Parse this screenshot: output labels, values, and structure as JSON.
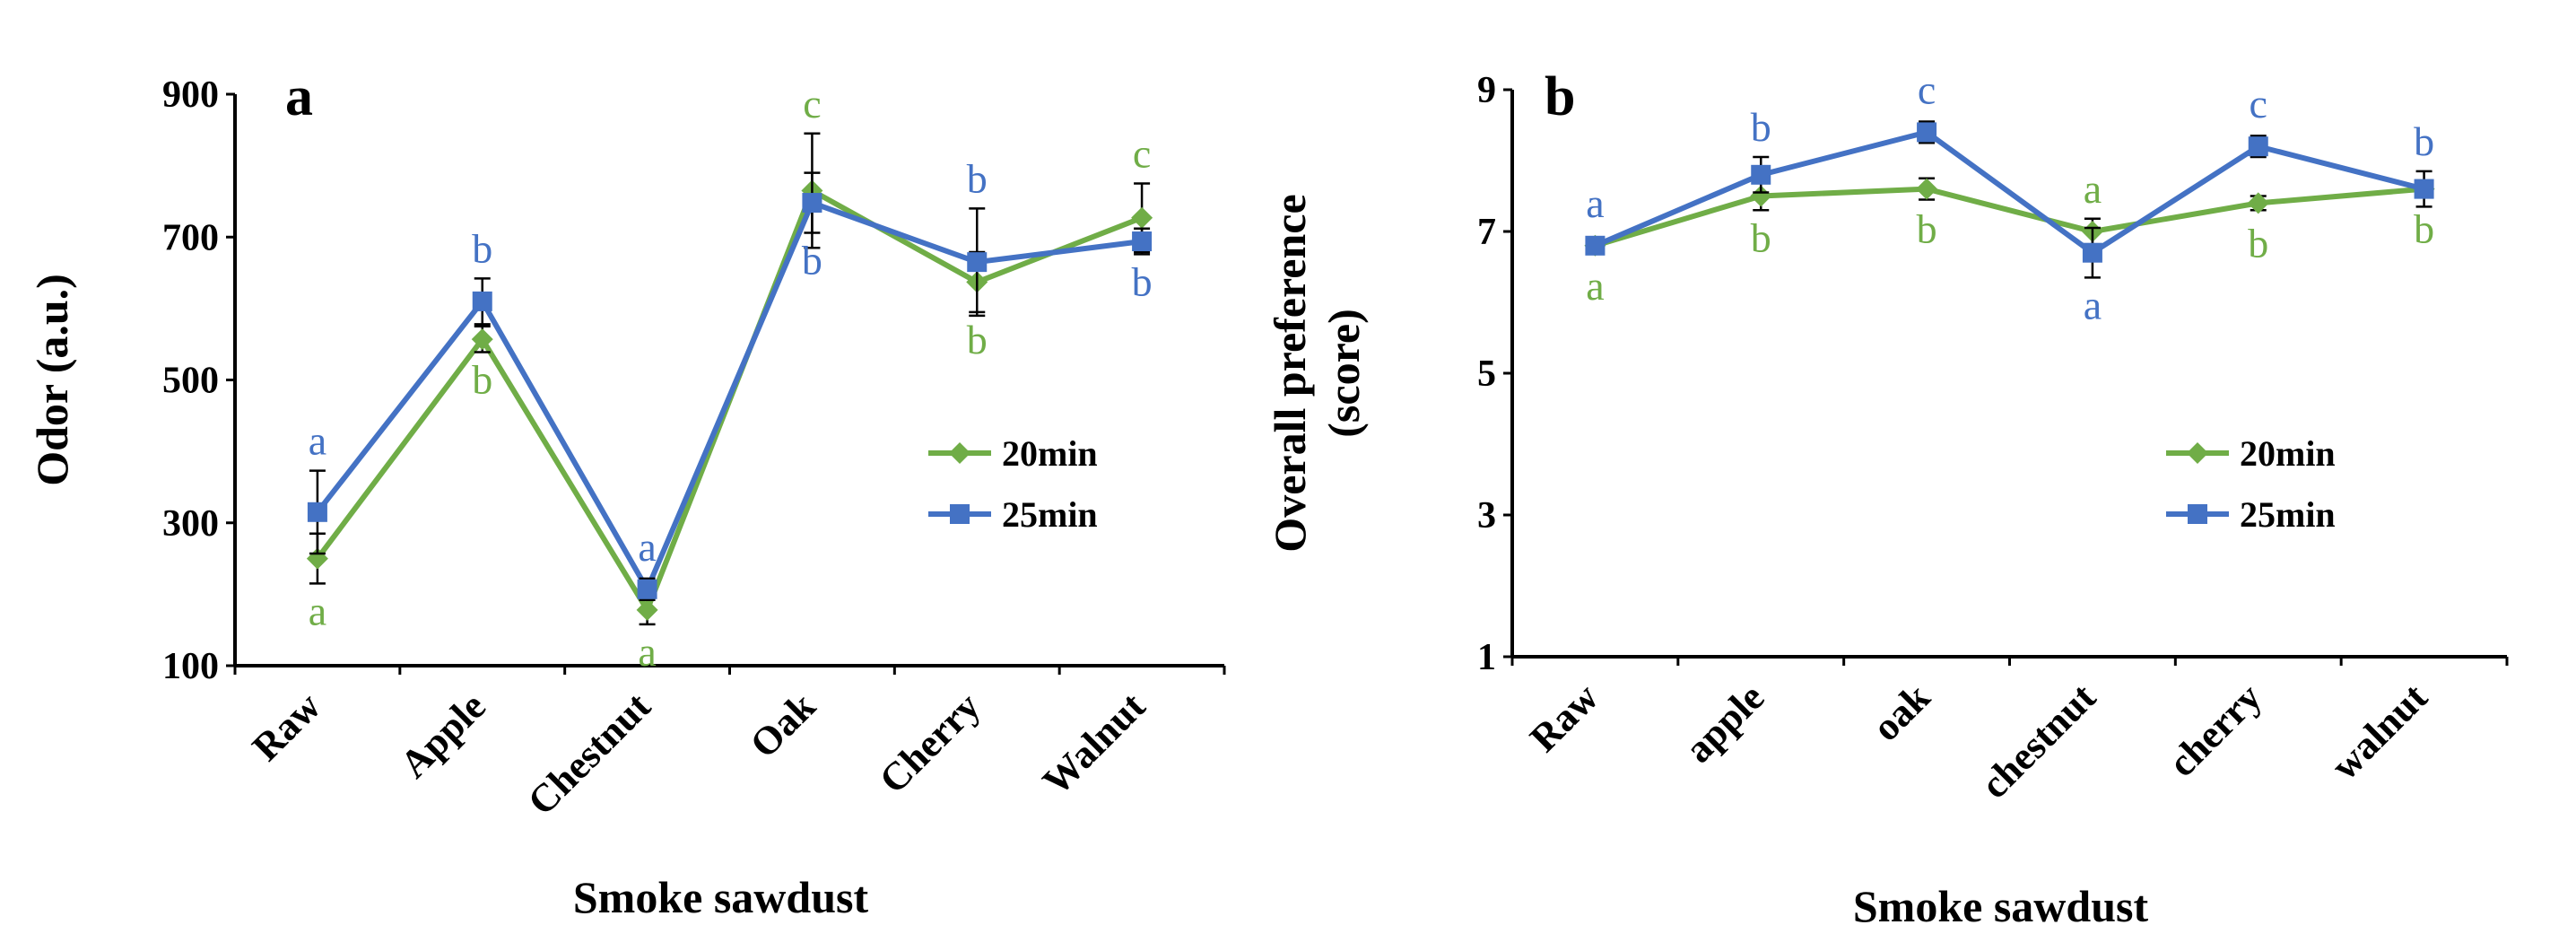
{
  "colors": {
    "series_20": "#70ad47",
    "series_25": "#4472c4",
    "axis": "#000000"
  },
  "chart_data": [
    {
      "type": "line",
      "panel_label": "a",
      "xlabel": "Smoke sawdust",
      "ylabel": "Odor (a.u.)",
      "categories": [
        "Raw",
        "Apple",
        "Chestnut",
        "Oak",
        "Cherry",
        "Walnut"
      ],
      "ylim": [
        100,
        900
      ],
      "yticks": [
        100,
        300,
        500,
        700,
        900
      ],
      "legend_position": "right",
      "series": [
        {
          "name": "20min",
          "marker": "diamond",
          "color": "#70ad47",
          "values": [
            250,
            557,
            178,
            765,
            637,
            727
          ],
          "errors": [
            35,
            18,
            20,
            80,
            42,
            48
          ],
          "letters": [
            "a",
            "b",
            "a",
            "c",
            "b",
            "c"
          ],
          "letter_pos": [
            "below",
            "below",
            "below",
            "above",
            "below",
            "above"
          ]
        },
        {
          "name": "25min",
          "marker": "square",
          "color": "#4472c4",
          "values": [
            315,
            610,
            207,
            748,
            665,
            694
          ],
          "errors": [
            58,
            32,
            15,
            42,
            75,
            18
          ],
          "letters": [
            "a",
            "b",
            "a",
            "b",
            "b",
            "b"
          ],
          "letter_pos": [
            "above",
            "above",
            "above",
            "below",
            "above",
            "below"
          ]
        }
      ]
    },
    {
      "type": "line",
      "panel_label": "b",
      "xlabel": "Smoke sawdust",
      "ylabel_lines": [
        "Overall preference",
        "(score)"
      ],
      "categories": [
        "Raw",
        "apple",
        "oak",
        "chestnut",
        "cherry",
        "walnut"
      ],
      "ylim": [
        1,
        9
      ],
      "yticks": [
        1,
        3,
        5,
        7,
        9
      ],
      "legend_position": "right",
      "series": [
        {
          "name": "20min",
          "marker": "diamond",
          "color": "#70ad47",
          "values": [
            6.8,
            7.5,
            7.6,
            7.0,
            7.4,
            7.6
          ],
          "errors": [
            0.12,
            0.2,
            0.15,
            0.18,
            0.1,
            0.12
          ],
          "letters": [
            "a",
            "b",
            "b",
            "a",
            "b",
            "b"
          ],
          "letter_pos": [
            "below",
            "below",
            "below",
            "above",
            "below",
            "below"
          ]
        },
        {
          "name": "25min",
          "marker": "square",
          "color": "#4472c4",
          "values": [
            6.8,
            7.8,
            8.4,
            6.7,
            8.2,
            7.6
          ],
          "errors": [
            0.1,
            0.25,
            0.15,
            0.35,
            0.15,
            0.25
          ],
          "letters": [
            "a",
            "b",
            "c",
            "a",
            "c",
            "b"
          ],
          "letter_pos": [
            "above",
            "above",
            "above",
            "below",
            "above",
            "above"
          ]
        }
      ]
    }
  ]
}
